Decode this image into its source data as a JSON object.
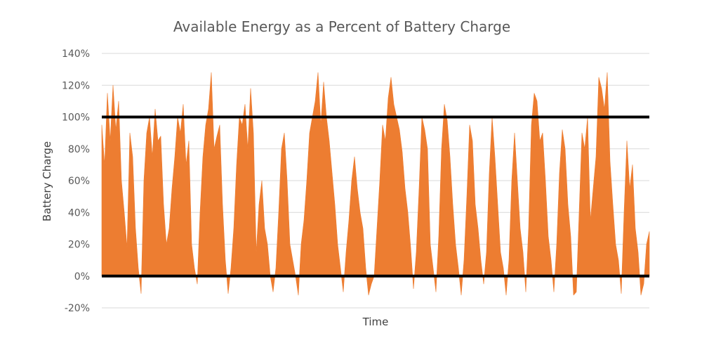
{
  "chart_data": {
    "type": "area",
    "title": "Available Energy as a Percent of Battery Charge",
    "xlabel": "Time",
    "ylabel": "Battery Charge",
    "ylim": [
      -20,
      140
    ],
    "yticks": [
      140,
      120,
      100,
      80,
      60,
      40,
      20,
      0,
      -20
    ],
    "ytick_labels": [
      "140%",
      "120%",
      "100%",
      "80%",
      "60%",
      "40%",
      "20%",
      "0%",
      "-20%"
    ],
    "grid": true,
    "legend": "none",
    "series_color": "#ED7D31",
    "threshold_color": "#000000",
    "thresholds": [
      100,
      0
    ],
    "series": [
      {
        "x": [
          0,
          1,
          2,
          3,
          4,
          5,
          6,
          7,
          8,
          9,
          10,
          11,
          12,
          13,
          14,
          15,
          16,
          17,
          18,
          19,
          20,
          21,
          22,
          23,
          24,
          25,
          26,
          27,
          28,
          29,
          30,
          31,
          32,
          33,
          34,
          35,
          36,
          37,
          38,
          39,
          40,
          41,
          42,
          43,
          44,
          45,
          46,
          47,
          48,
          49,
          50,
          51,
          52,
          53,
          54,
          55,
          56,
          57,
          58,
          59,
          60,
          61,
          62,
          63,
          64,
          65,
          66,
          67,
          68,
          69,
          70,
          71,
          72,
          73,
          74,
          75,
          76,
          77,
          78,
          79,
          80,
          81,
          82,
          83,
          84,
          85,
          86,
          87,
          88,
          89,
          90,
          91,
          92,
          93,
          94,
          95,
          96,
          97,
          98,
          99,
          100,
          101,
          102,
          103,
          104,
          105,
          106,
          107,
          108,
          109,
          110,
          111,
          112,
          113,
          114,
          115,
          116,
          117,
          118,
          119,
          120,
          121,
          122,
          123,
          124,
          125,
          126,
          127,
          128,
          129,
          130,
          131,
          132,
          133,
          134,
          135,
          136,
          137,
          138,
          139,
          140,
          141,
          142,
          143,
          144,
          145,
          146,
          147,
          148,
          149,
          150,
          151,
          152,
          153,
          154,
          155,
          156,
          157,
          158,
          159,
          160,
          161,
          162,
          163,
          164,
          165,
          166,
          167,
          168,
          169,
          170,
          171,
          172,
          173,
          174,
          175,
          176,
          177,
          178,
          179,
          180,
          181,
          182,
          183,
          184,
          185,
          186,
          187,
          188,
          189,
          190,
          191,
          192,
          193,
          194,
          195
        ],
        "values": [
          95,
          70,
          115,
          85,
          120,
          92,
          110,
          60,
          40,
          18,
          90,
          75,
          30,
          5,
          -11,
          60,
          90,
          100,
          75,
          105,
          85,
          88,
          45,
          20,
          30,
          55,
          75,
          100,
          90,
          108,
          70,
          85,
          20,
          5,
          -5,
          40,
          75,
          95,
          105,
          128,
          80,
          88,
          95,
          45,
          10,
          -11,
          5,
          30,
          70,
          100,
          95,
          108,
          80,
          118,
          90,
          15,
          45,
          60,
          30,
          20,
          0,
          -10,
          5,
          40,
          80,
          90,
          60,
          20,
          10,
          0,
          -12,
          20,
          35,
          60,
          90,
          100,
          110,
          128,
          95,
          122,
          100,
          85,
          65,
          45,
          20,
          5,
          -10,
          15,
          35,
          60,
          75,
          55,
          40,
          30,
          5,
          -12,
          -5,
          0,
          30,
          60,
          95,
          85,
          112,
          125,
          108,
          100,
          92,
          78,
          55,
          40,
          18,
          -8,
          15,
          55,
          100,
          92,
          80,
          20,
          5,
          -10,
          25,
          80,
          108,
          98,
          75,
          45,
          20,
          5,
          -12,
          10,
          50,
          95,
          85,
          45,
          30,
          10,
          -5,
          15,
          65,
          100,
          75,
          45,
          15,
          5,
          -12,
          10,
          60,
          90,
          60,
          30,
          15,
          -10,
          30,
          95,
          115,
          110,
          85,
          90,
          60,
          25,
          10,
          -10,
          20,
          65,
          92,
          80,
          45,
          25,
          -12,
          -10,
          40,
          90,
          80,
          100,
          35,
          55,
          75,
          125,
          118,
          105,
          128,
          72,
          45,
          20,
          10,
          -11,
          40,
          85,
          55,
          70,
          30,
          15,
          -12,
          -5,
          20,
          28
        ]
      }
    ]
  }
}
